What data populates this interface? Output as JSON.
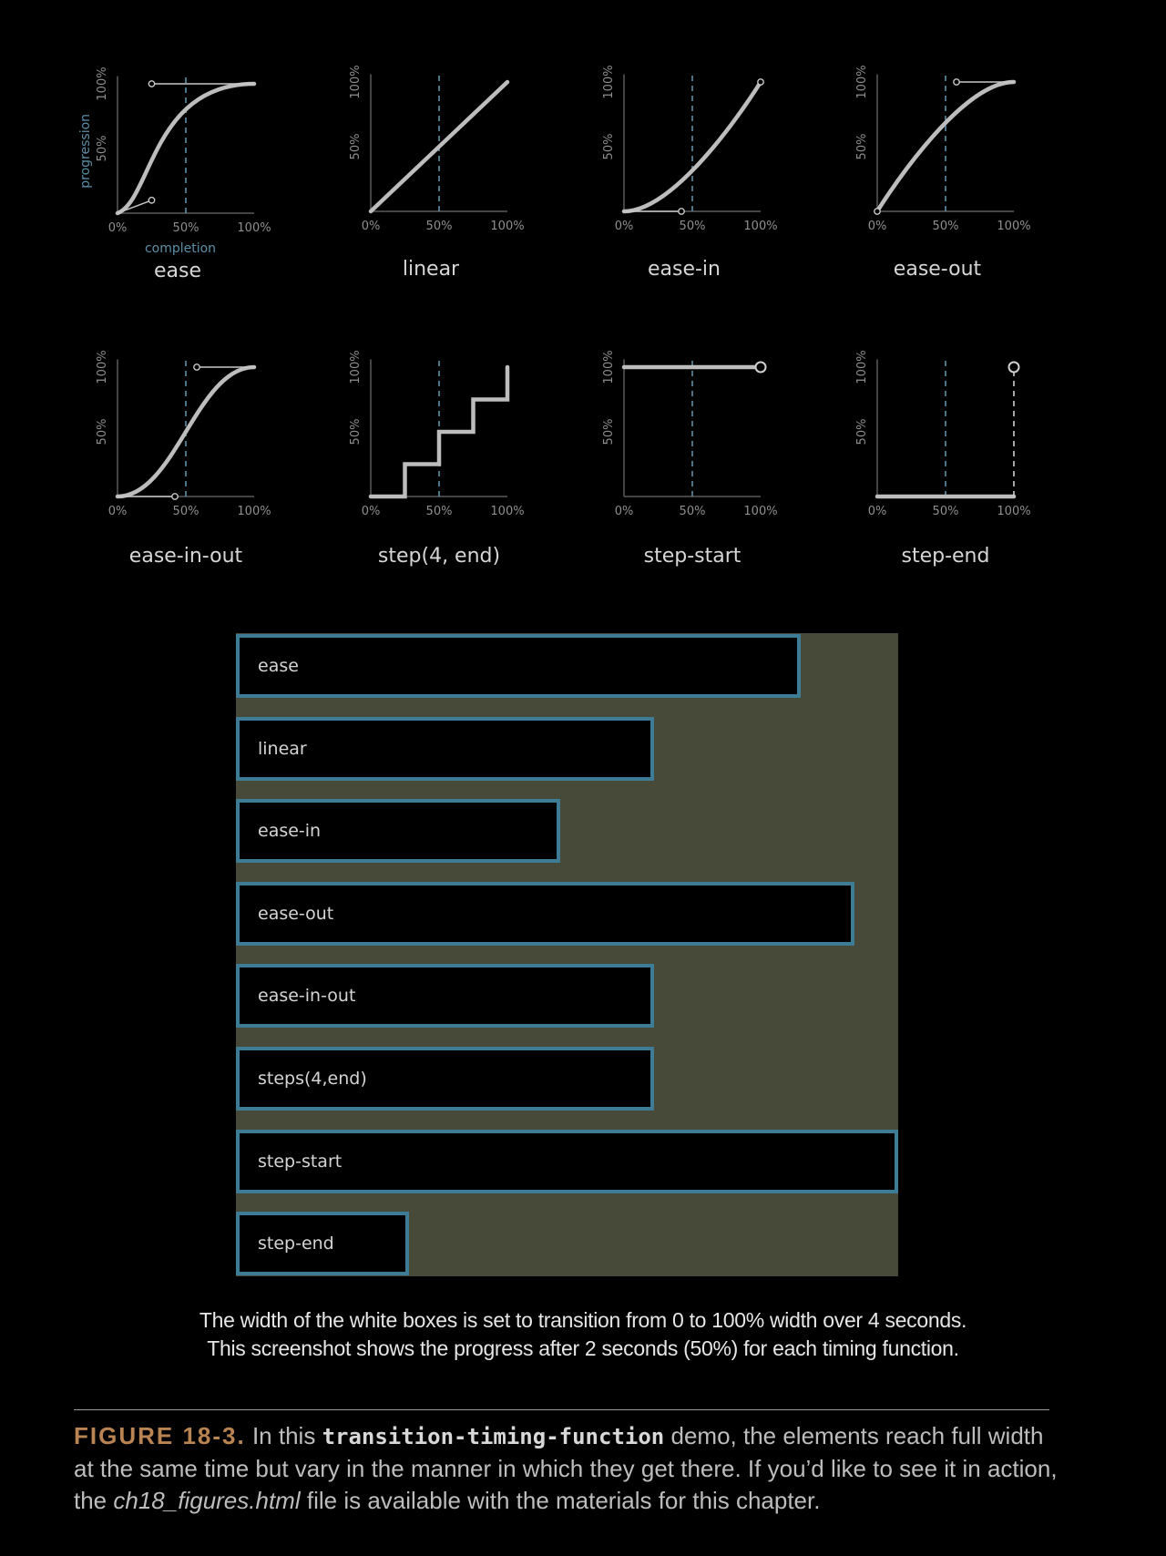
{
  "graphs": [
    {
      "label": "ease",
      "type": "bezier",
      "p": [
        0.25,
        0.1,
        0.25,
        1.0
      ]
    },
    {
      "label": "linear",
      "type": "bezier",
      "p": [
        0.0,
        0.0,
        1.0,
        1.0
      ]
    },
    {
      "label": "ease-in",
      "type": "bezier",
      "p": [
        0.42,
        0.0,
        1.0,
        1.0
      ]
    },
    {
      "label": "ease-out",
      "type": "bezier",
      "p": [
        0.0,
        0.0,
        0.58,
        1.0
      ]
    },
    {
      "label": "ease-in-out",
      "type": "bezier",
      "p": [
        0.42,
        0.0,
        0.58,
        1.0
      ]
    },
    {
      "label": "step(4,  end)",
      "type": "steps",
      "steps": 4
    },
    {
      "label": "step-start",
      "type": "step-start"
    },
    {
      "label": "step-end",
      "type": "step-end"
    }
  ],
  "axis": {
    "y_ticks": [
      "50%",
      "100%"
    ],
    "x_ticks": [
      "0%",
      "50%",
      "100%"
    ],
    "x_title": "completion",
    "y_title": "progression"
  },
  "demo": {
    "bars": [
      {
        "label": "ease",
        "progress": 0.8
      },
      {
        "label": "linear",
        "progress": 0.5
      },
      {
        "label": "ease-in",
        "progress": 0.31
      },
      {
        "label": "ease-out",
        "progress": 0.91
      },
      {
        "label": "ease-in-out",
        "progress": 0.5
      },
      {
        "label": "steps(4,end)",
        "progress": 0.5
      },
      {
        "label": "step-start",
        "progress": 1.0
      },
      {
        "label": "step-end",
        "progress": 0.0
      }
    ]
  },
  "note": {
    "line1": "The width of the white boxes is set to transition from 0 to 100% width over 4 seconds.",
    "line2": "This screenshot shows the progress after 2 seconds (50%) for each timing function."
  },
  "caption": {
    "figure": "FIGURE 18-3.",
    "text1": "In this",
    "code": "transition-timing-function",
    "text2": "demo, the elements reach full width at the same time but vary in the manner in which they get there. If you’d like to see it in action, the",
    "file": "ch18_figures.html",
    "text3": "file is available with the materials for this chapter."
  },
  "colors": {
    "curve": "#bdbdbd",
    "midline": "#5d90a8",
    "bar_border": "#3e7c95",
    "demo_bg": "#474a38",
    "figure_label": "#b98451"
  }
}
